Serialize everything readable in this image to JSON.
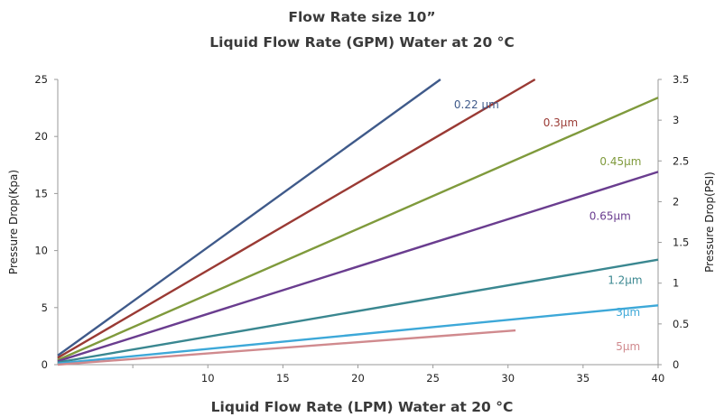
{
  "chart_data": {
    "type": "line",
    "title": "Flow Rate size 10”",
    "subtitle": "Liquid Flow Rate (GPM) Water at 20 °C",
    "xlabel": "Liquid Flow Rate (LPM) Water at 20 °C",
    "ylabel": "Pressure  Drop(Kpa)",
    "y2label": "Pressure  Drop(PSI)",
    "xlim": [
      0,
      40
    ],
    "ylim": [
      0,
      25
    ],
    "y2lim": [
      0,
      3.5
    ],
    "x_tick_labels": [
      "10",
      "15",
      "20",
      "25",
      "30",
      "35",
      "40"
    ],
    "x_tick_values": [
      10,
      15,
      20,
      25,
      30,
      35,
      40
    ],
    "y_tick_labels": [
      "0",
      "5",
      "10",
      "15",
      "20",
      "25"
    ],
    "y_tick_values": [
      0,
      5,
      10,
      15,
      20,
      25
    ],
    "y2_tick_labels": [
      "0",
      "0.5",
      "1",
      "1.5",
      "2",
      "2.5",
      "3",
      "3.5"
    ],
    "y2_tick_values": [
      0,
      0.5,
      1,
      1.5,
      2,
      2.5,
      3,
      3.5
    ],
    "grid": false,
    "series": [
      {
        "name": "0.22 μm",
        "color": "#3f5a8a",
        "x": [
          0,
          25.5
        ],
        "y": [
          0.8,
          25
        ],
        "label_x": 27.9,
        "label_y": 22.8
      },
      {
        "name": "0.3μm",
        "color": "#9a3a34",
        "x": [
          0,
          31.8
        ],
        "y": [
          0.6,
          25
        ],
        "label_x": 33.5,
        "label_y": 21.2
      },
      {
        "name": "0.45μm",
        "color": "#7f9a3c",
        "x": [
          0,
          40
        ],
        "y": [
          0.4,
          23.4
        ],
        "label_x": 37.5,
        "label_y": 17.8
      },
      {
        "name": "0.65μm",
        "color": "#6a3d8f",
        "x": [
          0,
          40
        ],
        "y": [
          0.3,
          16.9
        ],
        "label_x": 36.8,
        "label_y": 13.0
      },
      {
        "name": "1.2μm",
        "color": "#3a8790",
        "x": [
          0,
          40
        ],
        "y": [
          0.2,
          9.2
        ],
        "label_x": 37.8,
        "label_y": 7.4
      },
      {
        "name": "3μm",
        "color": "#3da8d8",
        "x": [
          0,
          40
        ],
        "y": [
          0.1,
          5.2
        ],
        "label_x": 38.0,
        "label_y": 4.6
      },
      {
        "name": "5μm",
        "color": "#d08a8e",
        "x": [
          0,
          30.5
        ],
        "y": [
          0.0,
          3.0
        ],
        "label_x": 38.0,
        "label_y": 1.6
      }
    ]
  }
}
